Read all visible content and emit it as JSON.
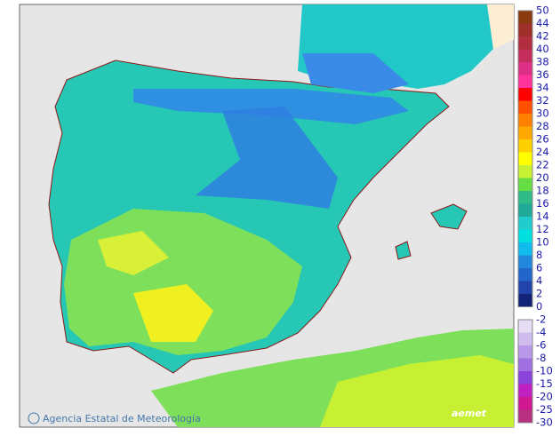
{
  "map": {
    "credit": "Agencia Estatal de Meteorología",
    "logo": "aemet",
    "scale_top": {
      "ticks": [
        50,
        44,
        42,
        40,
        38,
        36,
        34,
        32,
        30,
        28,
        26,
        24,
        22,
        20,
        18,
        16,
        14,
        12,
        10,
        8,
        6,
        4,
        2,
        0
      ],
      "colors": [
        "#8b3a10",
        "#9e2f2a",
        "#b02e3e",
        "#c42e5c",
        "#de2f86",
        "#ff3399",
        "#ff0000",
        "#ff5000",
        "#ff8000",
        "#ffa800",
        "#ffd000",
        "#ffff00",
        "#c8f032",
        "#66dd44",
        "#30bb88",
        "#22aa99",
        "#22cccc",
        "#00e0e0",
        "#10bbee",
        "#2288dd",
        "#2266cc",
        "#2244aa",
        "#112277"
      ]
    },
    "scale_bottom": {
      "ticks": [
        -2,
        -4,
        -6,
        -8,
        -10,
        -15,
        -20,
        -25,
        -30
      ],
      "colors": [
        "#e6dcf4",
        "#d0bdee",
        "#b898e8",
        "#a070e0",
        "#8a44dc",
        "#c020c0",
        "#d01890",
        "#b83080"
      ]
    }
  }
}
